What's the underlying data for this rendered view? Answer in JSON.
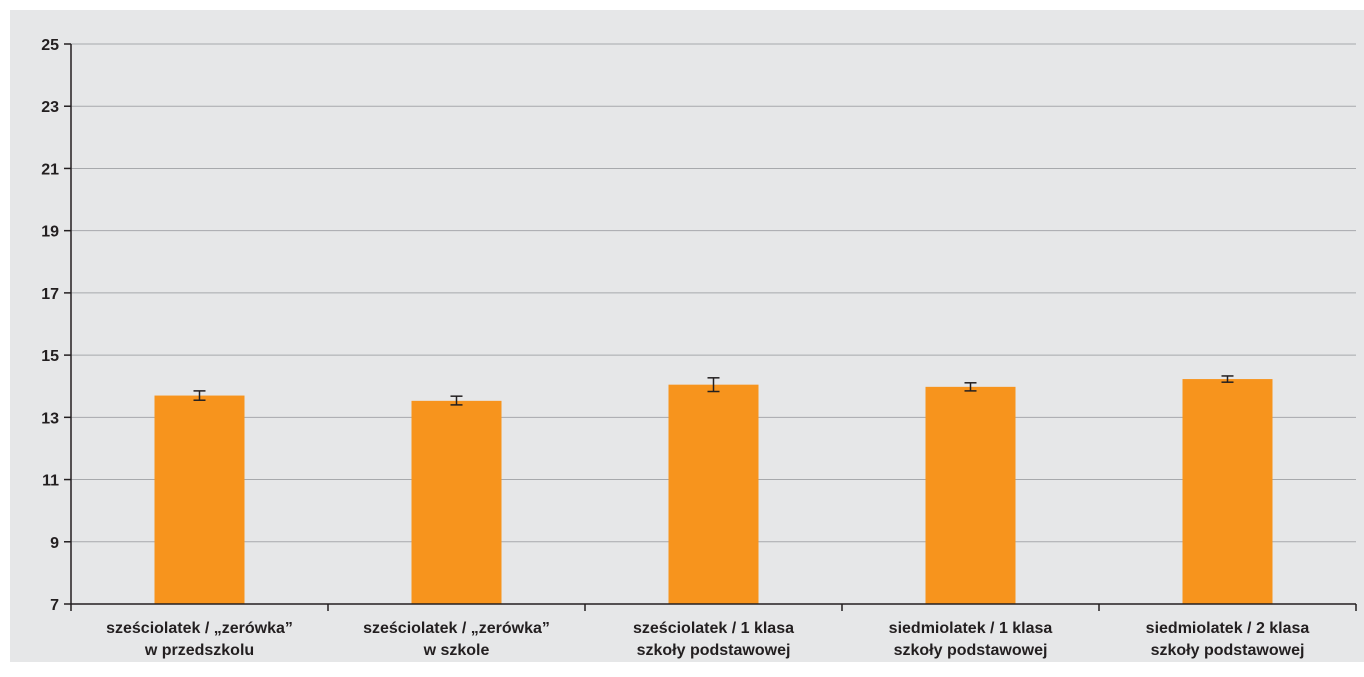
{
  "chart_data": {
    "type": "bar",
    "categories": [
      [
        "sześciolatek / „zerówka”",
        "w przedszkolu"
      ],
      [
        "sześciolatek / „zerówka”",
        "w szkole"
      ],
      [
        "sześciolatek / 1 klasa",
        "szkoły podstawowej"
      ],
      [
        "siedmiolatek / 1 klasa",
        "szkoły podstawowej"
      ],
      [
        "siedmiolatek / 2 klasa",
        "szkoły podstawowej"
      ]
    ],
    "values": [
      13.7,
      13.53,
      14.05,
      13.98,
      14.23
    ],
    "error_low": [
      13.55,
      13.4,
      13.83,
      13.85,
      14.13
    ],
    "error_high": [
      13.85,
      13.68,
      14.27,
      14.11,
      14.33
    ],
    "ylim": [
      7,
      25
    ],
    "yticks": [
      7,
      9,
      11,
      13,
      15,
      17,
      19,
      21,
      23,
      25
    ],
    "grid": true,
    "colors": {
      "bar": "#f7941d",
      "background": "#e6e7e8",
      "grid": "#a7a9ac",
      "axis": "#231f20",
      "errorbar": "#231f20"
    }
  }
}
